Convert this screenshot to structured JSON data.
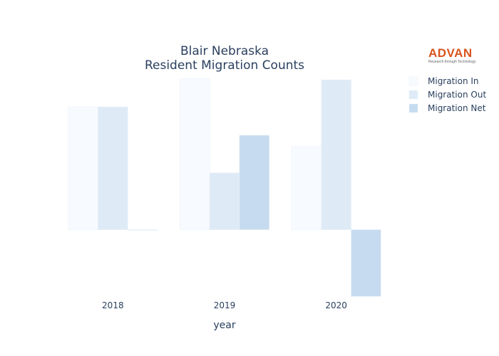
{
  "chart_data": {
    "type": "bar",
    "title_lines": [
      "Blair Nebraska",
      "Resident Migration Counts"
    ],
    "xlabel": "year",
    "ylabel": "",
    "categories": [
      "2018",
      "2019",
      "2020"
    ],
    "ylim": [
      -105,
      240
    ],
    "grid": false,
    "y_ticks_shown": false,
    "legend_position": "top-right",
    "series": [
      {
        "name": "Migration In",
        "color": "#f7fbff",
        "values": [
          186,
          229,
          126
        ]
      },
      {
        "name": "Migration Out",
        "color": "#deebf7",
        "values": [
          186,
          86,
          227
        ]
      },
      {
        "name": "Migration Net",
        "color": "#c6dbef",
        "values": [
          0,
          143,
          -101
        ]
      }
    ]
  },
  "logo": {
    "name": "ADVAN",
    "tagline": "Research through Technology"
  }
}
